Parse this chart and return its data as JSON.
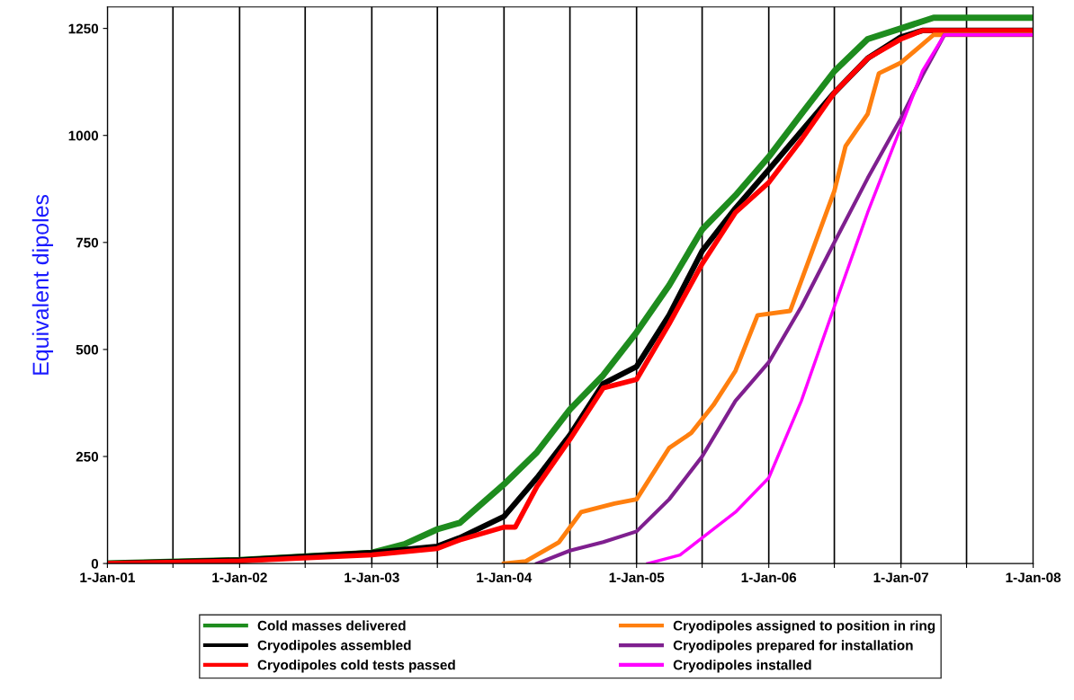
{
  "chart_data": {
    "type": "line",
    "ylabel": "Equivalent dipoles",
    "xlim": [
      "2001-01-01",
      "2008-01-01"
    ],
    "ylim": [
      0,
      1300
    ],
    "xticks": [
      {
        "value": "2001-01-01",
        "label": "1-Jan-01"
      },
      {
        "value": "2001-07-01",
        "label": null
      },
      {
        "value": "2002-01-01",
        "label": "1-Jan-02"
      },
      {
        "value": "2002-07-01",
        "label": null
      },
      {
        "value": "2003-01-01",
        "label": "1-Jan-03"
      },
      {
        "value": "2003-07-01",
        "label": null
      },
      {
        "value": "2004-01-01",
        "label": "1-Jan-04"
      },
      {
        "value": "2004-07-01",
        "label": null
      },
      {
        "value": "2005-01-01",
        "label": "1-Jan-05"
      },
      {
        "value": "2005-07-01",
        "label": null
      },
      {
        "value": "2006-01-01",
        "label": "1-Jan-06"
      },
      {
        "value": "2006-07-01",
        "label": null
      },
      {
        "value": "2007-01-01",
        "label": "1-Jan-07"
      },
      {
        "value": "2007-07-01",
        "label": null
      },
      {
        "value": "2008-01-01",
        "label": "1-Jan-08"
      }
    ],
    "yticks": [
      0,
      250,
      500,
      750,
      1000,
      1250
    ],
    "grid": "x",
    "legend": "bottom",
    "line_style": "solid",
    "marker": "none",
    "series": [
      {
        "name": "Cold masses delivered",
        "color": "#1e8c1e",
        "x": [
          "2001-01-01",
          "2002-01-01",
          "2003-01-01",
          "2003-04-01",
          "2003-07-01",
          "2003-09-01",
          "2004-01-01",
          "2004-04-01",
          "2004-07-01",
          "2004-10-01",
          "2005-01-01",
          "2005-04-01",
          "2005-07-01",
          "2005-10-01",
          "2006-01-01",
          "2006-04-01",
          "2006-07-01",
          "2006-10-01",
          "2007-01-01",
          "2007-04-01",
          "2008-01-01"
        ],
        "values": [
          0,
          8,
          25,
          45,
          80,
          95,
          185,
          260,
          360,
          440,
          540,
          650,
          780,
          860,
          950,
          1050,
          1150,
          1225,
          1250,
          1275,
          1275
        ]
      },
      {
        "name": "Cryodipoles assembled",
        "color": "#000000",
        "x": [
          "2001-01-01",
          "2002-01-01",
          "2003-01-01",
          "2003-07-01",
          "2003-09-01",
          "2004-01-01",
          "2004-04-01",
          "2004-07-01",
          "2004-10-01",
          "2005-01-01",
          "2005-04-01",
          "2005-07-01",
          "2005-10-01",
          "2006-01-01",
          "2006-04-01",
          "2006-07-01",
          "2006-10-01",
          "2007-01-01",
          "2007-03-01",
          "2008-01-01"
        ],
        "values": [
          0,
          8,
          25,
          40,
          60,
          110,
          200,
          300,
          420,
          460,
          580,
          730,
          830,
          920,
          1010,
          1100,
          1180,
          1230,
          1245,
          1245
        ]
      },
      {
        "name": "Cryodipoles cold tests passed",
        "color": "#ff0000",
        "x": [
          "2001-01-01",
          "2002-01-01",
          "2003-01-01",
          "2003-07-01",
          "2003-09-01",
          "2004-01-01",
          "2004-02-01",
          "2004-04-01",
          "2004-07-01",
          "2004-10-01",
          "2005-01-01",
          "2005-04-01",
          "2005-07-01",
          "2005-10-01",
          "2006-01-01",
          "2006-04-01",
          "2006-07-01",
          "2006-10-01",
          "2007-01-01",
          "2007-03-01",
          "2008-01-01"
        ],
        "values": [
          0,
          6,
          20,
          35,
          55,
          85,
          85,
          180,
          290,
          410,
          430,
          560,
          700,
          820,
          890,
          990,
          1100,
          1180,
          1225,
          1245,
          1245
        ]
      },
      {
        "name": "Cryodipoles assigned to position in ring",
        "color": "#ff7f0e",
        "x": [
          "2004-01-01",
          "2004-03-01",
          "2004-06-01",
          "2004-08-01",
          "2004-11-01",
          "2005-01-01",
          "2005-04-01",
          "2005-06-01",
          "2005-08-01",
          "2005-10-01",
          "2005-12-01",
          "2006-03-01",
          "2006-05-01",
          "2006-07-01",
          "2006-08-01",
          "2006-10-01",
          "2006-11-01",
          "2007-01-01",
          "2007-04-01",
          "2008-01-01"
        ],
        "values": [
          0,
          5,
          50,
          120,
          140,
          150,
          270,
          305,
          370,
          450,
          580,
          590,
          730,
          870,
          975,
          1050,
          1145,
          1170,
          1235,
          1235
        ]
      },
      {
        "name": "Cryodipoles prepared for installation",
        "color": "#7f1f8f",
        "x": [
          "2004-04-01",
          "2004-07-01",
          "2004-10-01",
          "2005-01-01",
          "2005-04-01",
          "2005-07-01",
          "2005-10-01",
          "2006-01-01",
          "2006-04-01",
          "2006-07-01",
          "2006-10-01",
          "2007-01-01",
          "2007-03-01",
          "2007-05-01",
          "2008-01-01"
        ],
        "values": [
          0,
          30,
          50,
          75,
          150,
          250,
          380,
          470,
          600,
          750,
          900,
          1040,
          1140,
          1235,
          1235
        ]
      },
      {
        "name": "Cryodipoles installed",
        "color": "#ff00ff",
        "x": [
          "2005-02-01",
          "2005-05-01",
          "2005-08-01",
          "2005-10-01",
          "2006-01-01",
          "2006-04-01",
          "2006-07-01",
          "2006-10-01",
          "2007-01-01",
          "2007-03-01",
          "2007-05-01",
          "2008-01-01"
        ],
        "values": [
          0,
          20,
          80,
          120,
          200,
          380,
          600,
          820,
          1020,
          1150,
          1235,
          1235
        ]
      }
    ]
  }
}
